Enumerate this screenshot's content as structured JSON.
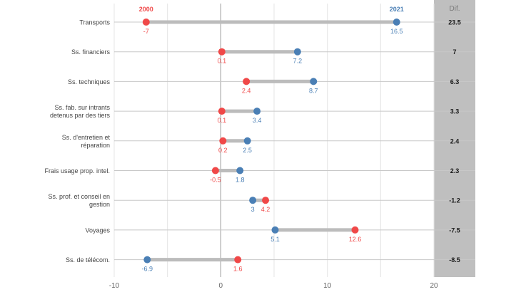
{
  "chart_data": {
    "type": "dumbbell",
    "legend": {
      "start_label": "2000",
      "end_label": "2021",
      "diff_header": "Dif."
    },
    "colors": {
      "start": "#f04848",
      "end": "#4a7fb5",
      "connector": "#bcbcbc",
      "diff_panel": "#bfbfbf",
      "grid": "#e4e4e4",
      "zero_line": "#9a9a9a"
    },
    "xlim": [
      -10,
      20
    ],
    "xticks": [
      -10,
      0,
      10,
      20
    ],
    "grid": true,
    "rows": [
      {
        "label": [
          "Transports"
        ],
        "start": -7,
        "start_label": "-7",
        "end": 16.5,
        "end_label": "16.5",
        "diff": "23.5"
      },
      {
        "label": [
          "Ss. financiers"
        ],
        "start": 0.1,
        "start_label": "0.1",
        "end": 7.2,
        "end_label": "7.2",
        "diff": "7"
      },
      {
        "label": [
          "Ss. techniques"
        ],
        "start": 2.4,
        "start_label": "2.4",
        "end": 8.7,
        "end_label": "8.7",
        "diff": "6.3"
      },
      {
        "label": [
          "Ss. fab. sur intrants",
          "detenus par des tiers"
        ],
        "start": 0.1,
        "start_label": "0.1",
        "end": 3.4,
        "end_label": "3.4",
        "diff": "3.3"
      },
      {
        "label": [
          "Ss. d'entretien et",
          "réparation"
        ],
        "start": 0.2,
        "start_label": "0.2",
        "end": 2.5,
        "end_label": "2.5",
        "diff": "2.4"
      },
      {
        "label": [
          "Frais usage prop. intel."
        ],
        "start": -0.5,
        "start_label": "-0.5",
        "end": 1.8,
        "end_label": "1.8",
        "diff": "2.3"
      },
      {
        "label": [
          "Ss. prof. et conseil en",
          "gestion"
        ],
        "start": 4.2,
        "start_label": "4.2",
        "end": 3,
        "end_label": "3",
        "diff": "-1.2"
      },
      {
        "label": [
          "Voyages"
        ],
        "start": 12.6,
        "start_label": "12.6",
        "end": 5.1,
        "end_label": "5.1",
        "diff": "-7.5"
      },
      {
        "label": [
          "Ss. de télécom."
        ],
        "start": 1.6,
        "start_label": "1.6",
        "end": -6.9,
        "end_label": "-6.9",
        "diff": "-8.5"
      }
    ]
  }
}
